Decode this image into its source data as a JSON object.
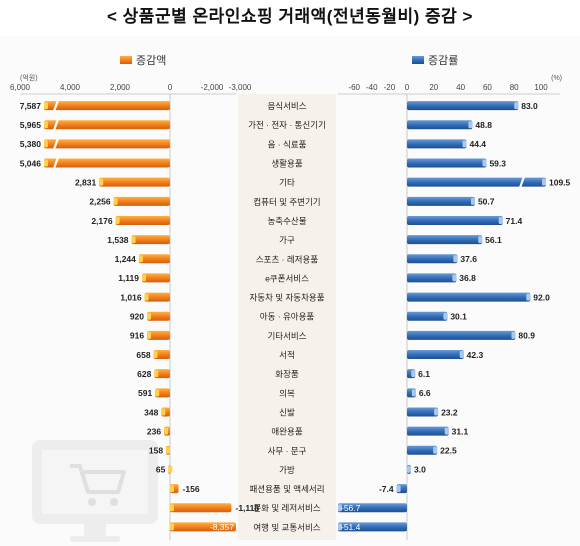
{
  "title": "< 상품군별 온라인쇼핑 거래액(전년동월비) 증감 >",
  "colors": {
    "amount": "#f07c1e",
    "amount_light": "#ffd24a",
    "rate": "#2f6bb5",
    "rate_light": "#a9c8ec",
    "center_panel": "#f6f1ea",
    "grid": "#cfcfcf"
  },
  "chart_data": [
    {
      "type": "bar",
      "orientation": "horizontal",
      "series": [
        {
          "name": "증감액",
          "values": [
            7587,
            5965,
            5380,
            5046,
            2831,
            2256,
            2176,
            1538,
            1244,
            1119,
            1016,
            920,
            916,
            658,
            628,
            591,
            348,
            236,
            158,
            65,
            -156,
            -1118,
            -8357
          ],
          "labels": [
            "7,587",
            "5,965",
            "5,380",
            "5,046",
            "2,831",
            "2,256",
            "2,176",
            "1,538",
            "1,244",
            "1,119",
            "1,016",
            "920",
            "916",
            "658",
            "628",
            "591",
            "348",
            "236",
            "158",
            "65",
            "-156",
            "-1,118",
            "-8,357"
          ]
        }
      ],
      "unit": "(억원)",
      "axis_ticks": [
        "6,000",
        "4,000",
        "2,000",
        "0",
        "-2,000",
        "-3,000"
      ],
      "xlim": [
        -3000,
        6000
      ],
      "axis_direction": "reversed",
      "axis_break": true,
      "legend": "top-left",
      "grid": false
    },
    {
      "type": "bar",
      "orientation": "horizontal",
      "series": [
        {
          "name": "증감률",
          "values": [
            83.0,
            48.8,
            44.4,
            59.3,
            109.5,
            50.7,
            71.4,
            56.1,
            37.6,
            36.8,
            92.0,
            30.1,
            80.9,
            42.3,
            6.1,
            6.6,
            23.2,
            31.1,
            22.5,
            3.0,
            -7.4,
            -56.7,
            -51.4
          ],
          "labels": [
            "83.0",
            "48.8",
            "44.4",
            "59.3",
            "109.5",
            "50.7",
            "71.4",
            "56.1",
            "37.6",
            "36.8",
            "92.0",
            "30.1",
            "80.9",
            "42.3",
            "6.1",
            "6.6",
            "23.2",
            "31.1",
            "22.5",
            "3.0",
            "-7.4",
            "-56.7",
            "-51.4"
          ]
        }
      ],
      "unit": "(%)",
      "axis_ticks": [
        "-60",
        "-40",
        "-20",
        "0",
        "20",
        "40",
        "60",
        "80",
        "100"
      ],
      "xlim": [
        -60,
        100
      ],
      "axis_break": true,
      "legend": "top-right",
      "grid": false
    }
  ],
  "categories": [
    "음식서비스",
    "가전 · 전자 · 통신기기",
    "음 · 식료품",
    "생활용품",
    "기타",
    "컴퓨터 및 주변기기",
    "농축수산물",
    "가구",
    "스포츠 · 레저용품",
    "e쿠폰서비스",
    "자동차 및 자동차용품",
    "아동 · 유아용품",
    "기타서비스",
    "서적",
    "화장품",
    "의복",
    "신발",
    "애완용품",
    "사무 · 문구",
    "가방",
    "패션용품 및 액세서리",
    "문화 및 레저서비스",
    "여행 및 교통서비스"
  ]
}
